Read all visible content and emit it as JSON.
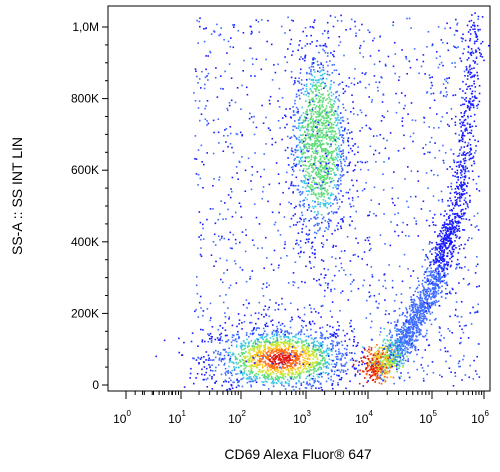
{
  "chart_data": {
    "type": "scatter",
    "style": "flow-cytometry-density-dot-plot",
    "xlabel": "CD69 Alexa Fluor® 647",
    "ylabel": "SS-A :: SS INT LIN",
    "x_scale": "biexponential-log",
    "y_scale": "linear",
    "xlim": [
      0,
      1000000
    ],
    "ylim": [
      0,
      1050000
    ],
    "x_ticks": [
      {
        "value": 0,
        "base": "10",
        "exp": "0"
      },
      {
        "value": 10,
        "base": "10",
        "exp": "1"
      },
      {
        "value": 100,
        "base": "10",
        "exp": "2"
      },
      {
        "value": 1000,
        "base": "10",
        "exp": "3"
      },
      {
        "value": 10000,
        "base": "10",
        "exp": "4"
      },
      {
        "value": 100000,
        "base": "10",
        "exp": "5"
      },
      {
        "value": 1000000,
        "base": "10",
        "exp": "6"
      }
    ],
    "y_ticks": [
      {
        "value": 0,
        "label": "0"
      },
      {
        "value": 200000,
        "label": "200K"
      },
      {
        "value": 400000,
        "label": "400K"
      },
      {
        "value": 600000,
        "label": "600K"
      },
      {
        "value": 800000,
        "label": "800K"
      },
      {
        "value": 1000000,
        "label": "1,0M"
      }
    ],
    "populations": [
      {
        "name": "",
        "shape": "blob",
        "center_x": 400,
        "center_y": 75000,
        "spread_x_log": 0.55,
        "spread_y": 45000,
        "points": 1600,
        "peak_color": "#e8301c"
      },
      {
        "name": "",
        "shape": "blob",
        "center_x": 1600,
        "center_y": 680000,
        "spread_x_log": 0.22,
        "spread_y": 130000,
        "points": 1300,
        "peak_color": "#7ed35a"
      },
      {
        "name": "",
        "shape": "curve",
        "start_x": 10000,
        "start_y": 50000,
        "end_x": 200000,
        "end_y": 420000,
        "points": 1500,
        "peak_color": "#e8301c"
      },
      {
        "name": "",
        "shape": "curve",
        "start_x": 200000,
        "start_y": 420000,
        "end_x": 700000,
        "end_y": 1040000,
        "points": 500,
        "peak_color": "#3355ff"
      },
      {
        "name": "",
        "shape": "diffuse",
        "points": 1400,
        "peak_color": "#2233ee"
      }
    ],
    "colormap": [
      "#1a1aff",
      "#3f6dff",
      "#3fc7e6",
      "#5fdc7a",
      "#c9e835",
      "#ffc21a",
      "#ff6a12",
      "#e0180e"
    ],
    "grid": false
  }
}
